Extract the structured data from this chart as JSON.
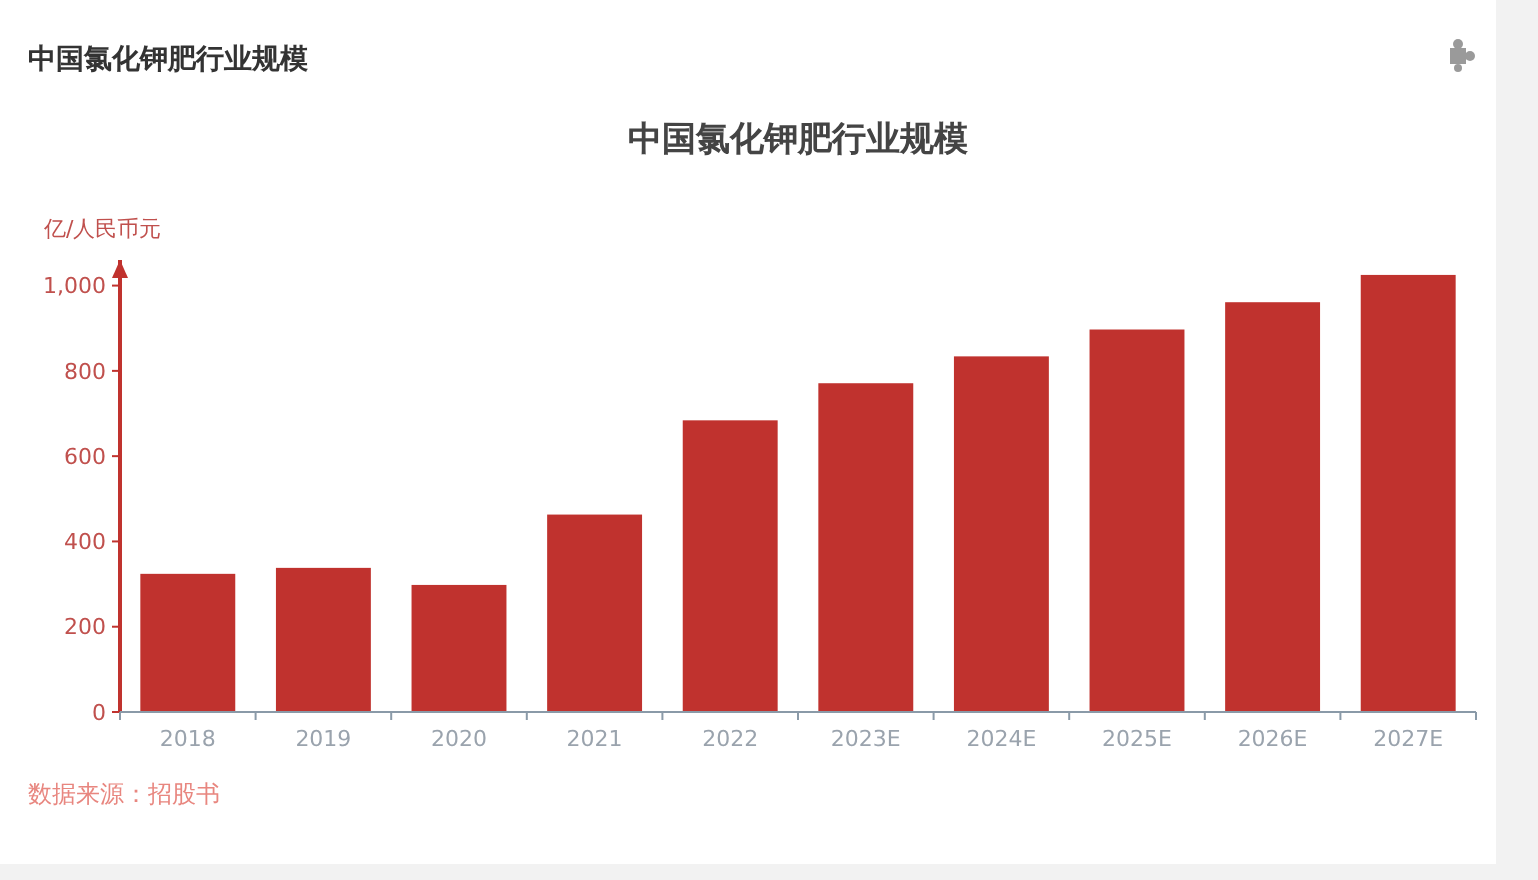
{
  "chart_data": {
    "type": "bar",
    "title": "中国氯化钾肥行业规模",
    "ylabel": "亿/人民币元",
    "annotations": [
      "中国氯化钾肥行业规模",
      "数据来源：招股书"
    ],
    "categories": [
      "2018",
      "2019",
      "2020",
      "2021",
      "2022",
      "2023E",
      "2024E",
      "2025E",
      "2026E",
      "2027E"
    ],
    "values": [
      324,
      338,
      298,
      463,
      684,
      771,
      834,
      897,
      961,
      1025
    ],
    "color": "#c0322e",
    "ylim": [
      0,
      1060
    ],
    "yticks": [
      0,
      200,
      400,
      600,
      800,
      {
        "value": 1000,
        "label": "1,000"
      }
    ],
    "grid": false
  }
}
